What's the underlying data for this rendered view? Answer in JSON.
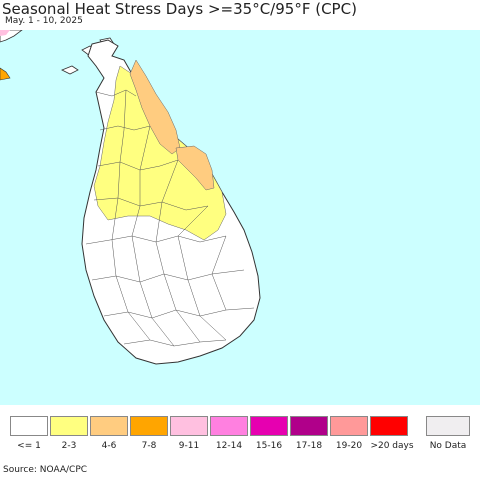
{
  "title": "Seasonal Heat Stress Days >=35°C/95°F (CPC)",
  "subtitle": "May. 1 - 10, 2025",
  "source": "Source: NOAA/CPC",
  "colors": {
    "ocean": "#ccffff",
    "land": "#ffffff",
    "boundary": "#333333"
  },
  "legend": [
    {
      "label": "<= 1",
      "color": "#ffffff"
    },
    {
      "label": "2-3",
      "color": "#ffff80"
    },
    {
      "label": "4-6",
      "color": "#ffcc80"
    },
    {
      "label": "7-8",
      "color": "#ffa500"
    },
    {
      "label": "9-11",
      "color": "#ffc0e0"
    },
    {
      "label": "12-14",
      "color": "#ff80e0"
    },
    {
      "label": "15-16",
      "color": "#e600b0"
    },
    {
      "label": "17-18",
      "color": "#b0008a"
    },
    {
      "label": "19-20",
      "color": "#ff9999"
    },
    {
      "label": ">20 days",
      "color": "#ff0000"
    }
  ],
  "no_data": {
    "label": "No Data",
    "color": "#f0eef0"
  }
}
